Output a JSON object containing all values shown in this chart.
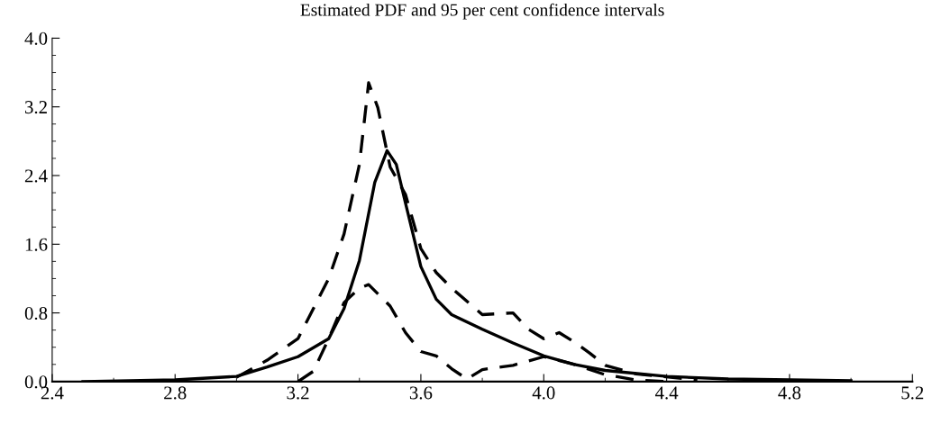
{
  "chart_data": {
    "type": "line",
    "title": "Estimated PDF and 95 per cent confidence intervals",
    "xlim": [
      2.4,
      5.2
    ],
    "ylim": [
      0,
      4.0
    ],
    "xticks": [
      {
        "value": 2.4,
        "label": "2.4"
      },
      {
        "value": 2.8,
        "label": "2.8"
      },
      {
        "value": 3.2,
        "label": "3.2"
      },
      {
        "value": 3.6,
        "label": "3.6"
      },
      {
        "value": 4.0,
        "label": "4.0"
      },
      {
        "value": 4.4,
        "label": "4.4"
      },
      {
        "value": 4.8,
        "label": "4.8"
      },
      {
        "value": 5.2,
        "label": "5.2"
      }
    ],
    "yticks": [
      {
        "value": 0,
        "label": "0.0"
      },
      {
        "value": 0.8,
        "label": "0.8"
      },
      {
        "value": 1.6,
        "label": "1.6"
      },
      {
        "value": 2.4,
        "label": "2.4"
      },
      {
        "value": 3.2,
        "label": "3.2"
      },
      {
        "value": 4.0,
        "label": "4.0"
      }
    ],
    "grid": false,
    "legend": false,
    "series": [
      {
        "color": "#000000",
        "line_style": "solid",
        "x": [
          2.5,
          2.8,
          3.0,
          3.1,
          3.2,
          3.3,
          3.35,
          3.4,
          3.45,
          3.49,
          3.52,
          3.55,
          3.6,
          3.65,
          3.7,
          3.8,
          3.9,
          4.0,
          4.1,
          4.2,
          4.4,
          4.6,
          5.0
        ],
        "values": [
          0.0,
          0.02,
          0.06,
          0.17,
          0.29,
          0.5,
          0.85,
          1.41,
          2.32,
          2.69,
          2.53,
          2.08,
          1.34,
          0.96,
          0.78,
          0.61,
          0.45,
          0.3,
          0.2,
          0.13,
          0.06,
          0.03,
          0.01
        ]
      },
      {
        "color": "#000000",
        "line_style": "dashed",
        "x": [
          3.0,
          3.1,
          3.2,
          3.3,
          3.35,
          3.4,
          3.43,
          3.46,
          3.5,
          3.55,
          3.6,
          3.65,
          3.7,
          3.8,
          3.9,
          3.95,
          4.0,
          4.05,
          4.1,
          4.15,
          4.2,
          4.3,
          4.5
        ],
        "values": [
          0.05,
          0.25,
          0.5,
          1.2,
          1.72,
          2.53,
          3.48,
          3.19,
          2.5,
          2.18,
          1.55,
          1.27,
          1.09,
          0.78,
          0.8,
          0.61,
          0.5,
          0.57,
          0.46,
          0.33,
          0.19,
          0.09,
          0.02
        ]
      },
      {
        "color": "#000000",
        "line_style": "dashed",
        "x": [
          3.2,
          3.25,
          3.3,
          3.35,
          3.4,
          3.43,
          3.5,
          3.55,
          3.6,
          3.65,
          3.7,
          3.75,
          3.8,
          3.9,
          4.0,
          4.1,
          4.2,
          4.3,
          4.4
        ],
        "values": [
          0.0,
          0.12,
          0.5,
          0.92,
          1.09,
          1.13,
          0.88,
          0.57,
          0.35,
          0.3,
          0.15,
          0.03,
          0.14,
          0.19,
          0.29,
          0.2,
          0.08,
          0.02,
          0.0
        ]
      }
    ]
  }
}
